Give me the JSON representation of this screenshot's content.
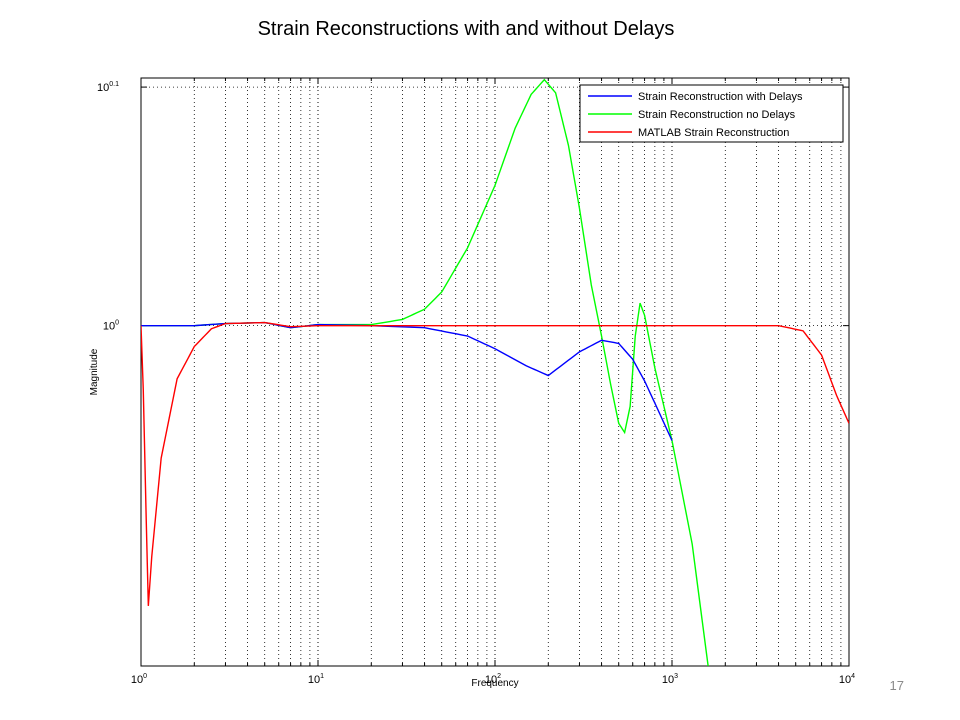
{
  "slide": {
    "title": "Strain Reconstructions with and without Delays",
    "page_number": "17"
  },
  "chart_data": {
    "type": "line",
    "title": "",
    "xlabel": "Frequency",
    "ylabel": "Magnitude",
    "x_scale": "log",
    "y_scale": "log",
    "xlim": [
      1,
      10000
    ],
    "ylim": [
      0.72,
      1.27
    ],
    "x_ticks": [
      {
        "base": "10",
        "exp": "0",
        "value": 1
      },
      {
        "base": "10",
        "exp": "1",
        "value": 10
      },
      {
        "base": "10",
        "exp": "2",
        "value": 100
      },
      {
        "base": "10",
        "exp": "3",
        "value": 1000
      },
      {
        "base": "10",
        "exp": "4",
        "value": 10000
      }
    ],
    "y_ticks": [
      {
        "base": "10",
        "exp": "0",
        "value": 1
      },
      {
        "base": "10",
        "exp": "0.1",
        "value": 1.2589
      }
    ],
    "grid": true,
    "legend_position": "top-right",
    "series": [
      {
        "name": "Strain Reconstruction with Delays",
        "color": "#0000ff",
        "points": [
          [
            1,
            1.0
          ],
          [
            2,
            1.0
          ],
          [
            3,
            1.002
          ],
          [
            5,
            1.003
          ],
          [
            7,
            0.998
          ],
          [
            10,
            1.001
          ],
          [
            20,
            1.0
          ],
          [
            40,
            0.998
          ],
          [
            70,
            0.99
          ],
          [
            100,
            0.978
          ],
          [
            150,
            0.962
          ],
          [
            200,
            0.953
          ],
          [
            300,
            0.975
          ],
          [
            400,
            0.986
          ],
          [
            500,
            0.983
          ],
          [
            600,
            0.968
          ],
          [
            700,
            0.948
          ],
          [
            800,
            0.928
          ],
          [
            1000,
            0.895
          ]
        ]
      },
      {
        "name": "Strain Reconstruction no Delays",
        "color": "#00ff00",
        "points": [
          [
            1,
            1.0
          ],
          [
            2,
            1.0
          ],
          [
            3,
            1.002
          ],
          [
            5,
            1.003
          ],
          [
            7,
            0.998
          ],
          [
            10,
            1.001
          ],
          [
            20,
            1.001
          ],
          [
            30,
            1.006
          ],
          [
            40,
            1.016
          ],
          [
            50,
            1.033
          ],
          [
            70,
            1.078
          ],
          [
            100,
            1.145
          ],
          [
            130,
            1.21
          ],
          [
            160,
            1.25
          ],
          [
            190,
            1.268
          ],
          [
            220,
            1.252
          ],
          [
            260,
            1.19
          ],
          [
            300,
            1.12
          ],
          [
            350,
            1.04
          ],
          [
            400,
            0.99
          ],
          [
            450,
            0.945
          ],
          [
            500,
            0.91
          ],
          [
            540,
            0.902
          ],
          [
            580,
            0.925
          ],
          [
            620,
            0.99
          ],
          [
            660,
            1.022
          ],
          [
            700,
            1.01
          ],
          [
            800,
            0.96
          ],
          [
            1000,
            0.895
          ],
          [
            1300,
            0.81
          ],
          [
            1600,
            0.72
          ]
        ]
      },
      {
        "name": "MATLAB Strain Reconstruction",
        "color": "#ff0000",
        "points": [
          [
            1,
            1.0
          ],
          [
            1.03,
            0.94
          ],
          [
            1.07,
            0.83
          ],
          [
            1.1,
            0.763
          ],
          [
            1.15,
            0.8
          ],
          [
            1.3,
            0.88
          ],
          [
            1.6,
            0.95
          ],
          [
            2,
            0.98
          ],
          [
            2.5,
            0.997
          ],
          [
            3,
            1.002
          ],
          [
            5,
            1.003
          ],
          [
            7,
            0.999
          ],
          [
            10,
            1.0
          ],
          [
            100,
            1.0
          ],
          [
            1000,
            1.0
          ],
          [
            4000,
            1.0
          ],
          [
            5500,
            0.995
          ],
          [
            7000,
            0.972
          ],
          [
            8500,
            0.935
          ],
          [
            10000,
            0.91
          ]
        ]
      }
    ]
  }
}
